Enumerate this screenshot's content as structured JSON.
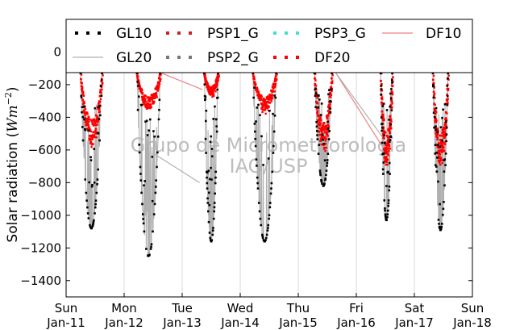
{
  "chart_data": {
    "type": "scatter",
    "ylabel_text": "Solar radiation (",
    "ylabel_unit": "Wm",
    "ylabel_exp": "−2",
    "ylabel_close": ")",
    "ylim": [
      -1500,
      200
    ],
    "yticks": [
      0,
      -200,
      -400,
      -600,
      -800,
      -1000,
      -1200,
      -1400
    ],
    "xlim": [
      0,
      7
    ],
    "xticks": [
      {
        "value": 0,
        "day": "Sun",
        "date": "Jan-11"
      },
      {
        "value": 1,
        "day": "Mon",
        "date": "Jan-12"
      },
      {
        "value": 2,
        "day": "Tue",
        "date": "Jan-13"
      },
      {
        "value": 3,
        "day": "Wed",
        "date": "Jan-14"
      },
      {
        "value": 4,
        "day": "Thu",
        "date": "Jan-15"
      },
      {
        "value": 5,
        "day": "Fri",
        "date": "Jan-16"
      },
      {
        "value": 6,
        "day": "Sat",
        "date": "Jan-17"
      },
      {
        "value": 7,
        "day": "Sun",
        "date": "Jan-18"
      }
    ],
    "grid": "vertical",
    "legend_location": "top",
    "watermark": [
      "Grupo de Micrometeorologia",
      "IAG/USP"
    ],
    "series": [
      {
        "name": "GL10",
        "style": "dotted",
        "color": "#000000"
      },
      {
        "name": "GL20",
        "style": "line",
        "color": "#b0b0b0"
      },
      {
        "name": "PSP1_G",
        "style": "dotted",
        "color": "#cc2222"
      },
      {
        "name": "PSP2_G",
        "style": "dotted",
        "color": "#777777"
      },
      {
        "name": "PSP3_G",
        "style": "dotted",
        "color": "#40e0d0"
      },
      {
        "name": "DF20",
        "style": "dotted",
        "color": "#ff0000"
      },
      {
        "name": "DF10",
        "style": "line",
        "color": "#f08080"
      }
    ],
    "days": [
      {
        "start": 0.25,
        "end": 0.62,
        "peak_global": -1080,
        "peak_diffuse": -510
      },
      {
        "start": 1.22,
        "end": 1.62,
        "peak_global": -1250,
        "peak_diffuse": -320
      },
      {
        "start": 2.38,
        "end": 2.62,
        "peak_global": -1160,
        "peak_diffuse": -240
      },
      {
        "start": 3.22,
        "end": 3.62,
        "peak_global": -1160,
        "peak_diffuse": -330
      },
      {
        "start": 4.28,
        "end": 4.58,
        "peak_global": -820,
        "peak_diffuse": -540
      },
      {
        "start": 5.42,
        "end": 5.62,
        "peak_global": -1030,
        "peak_diffuse": -640
      },
      {
        "start": 6.32,
        "end": 6.58,
        "peak_global": -1090,
        "peak_diffuse": -630
      }
    ]
  }
}
